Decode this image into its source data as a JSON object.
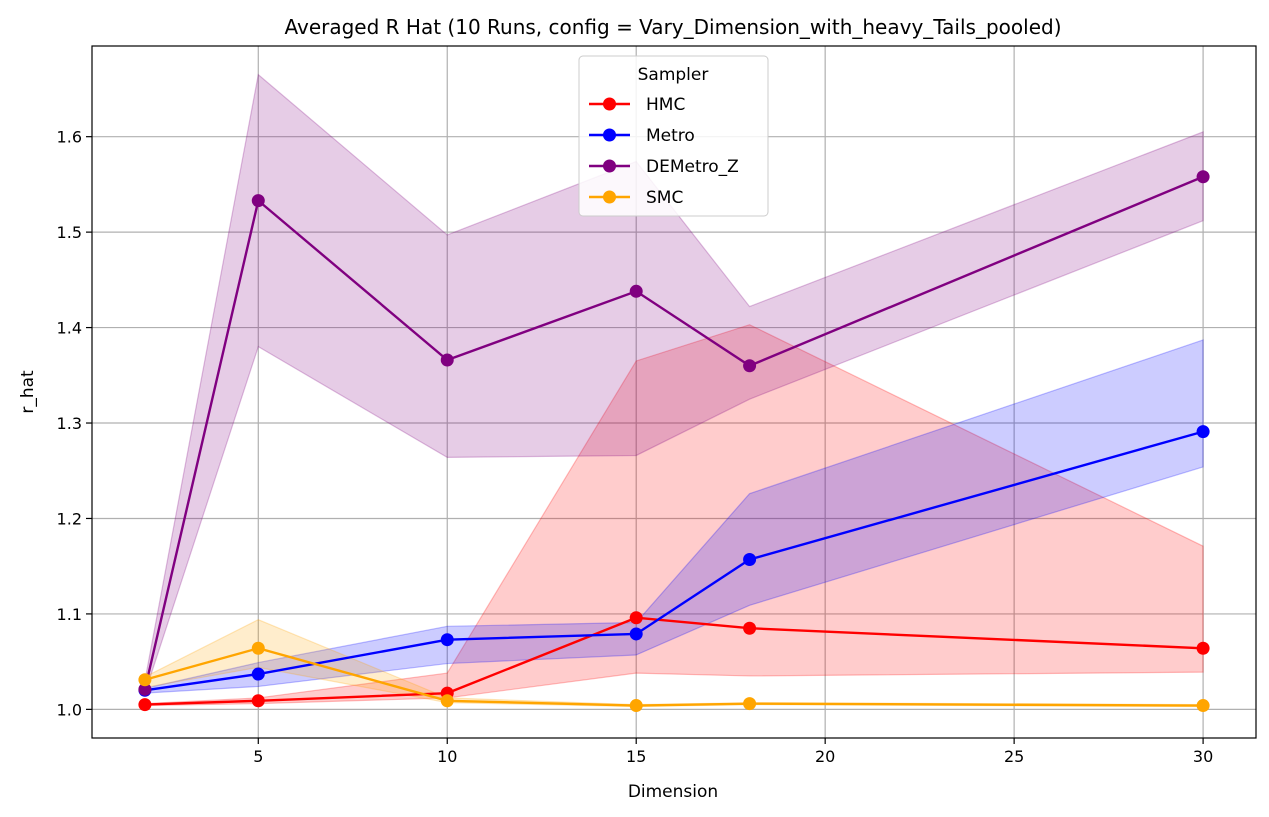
{
  "chart_data": {
    "type": "line",
    "title": "Averaged R Hat (10 Runs, config = Vary_Dimension_with_heavy_Tails_pooled)",
    "xlabel": "Dimension",
    "ylabel": "r_hat",
    "xlim": [
      0.6,
      31.4
    ],
    "ylim": [
      0.97,
      1.695
    ],
    "xticks": [
      5,
      10,
      15,
      20,
      25,
      30
    ],
    "yticks": [
      1.0,
      1.1,
      1.2,
      1.3,
      1.4,
      1.5,
      1.6
    ],
    "grid": true,
    "legend": {
      "title": "Sampler",
      "position": "top-center"
    },
    "x": [
      2,
      5,
      10,
      15,
      18,
      30
    ],
    "series": [
      {
        "name": "HMC",
        "color": "#ff0000",
        "values": [
          1.005,
          1.009,
          1.017,
          1.096,
          1.085,
          1.064
        ],
        "band_low": [
          1.004,
          1.006,
          1.012,
          1.038,
          1.035,
          1.039
        ],
        "band_high": [
          1.006,
          1.012,
          1.038,
          1.365,
          1.403,
          1.171
        ]
      },
      {
        "name": "Metro",
        "color": "#0000ff",
        "values": [
          1.02,
          1.037,
          1.073,
          1.079,
          1.157,
          1.291
        ],
        "band_low": [
          1.017,
          1.024,
          1.048,
          1.057,
          1.109,
          1.254
        ],
        "band_high": [
          1.022,
          1.049,
          1.087,
          1.091,
          1.226,
          1.387
        ]
      },
      {
        "name": "DEMetro_Z",
        "color": "#800080",
        "values": [
          1.021,
          1.533,
          1.366,
          1.438,
          1.36,
          1.558
        ],
        "band_low": [
          1.017,
          1.38,
          1.264,
          1.266,
          1.325,
          1.512
        ],
        "band_high": [
          1.03,
          1.665,
          1.497,
          1.574,
          1.422,
          1.605
        ]
      },
      {
        "name": "SMC",
        "color": "#ffa500",
        "values": [
          1.031,
          1.064,
          1.009,
          1.004,
          1.006,
          1.004
        ],
        "band_low": [
          1.023,
          1.044,
          1.007,
          1.003,
          1.005,
          1.003
        ],
        "band_high": [
          1.034,
          1.094,
          1.012,
          1.005,
          1.007,
          1.005
        ]
      }
    ]
  }
}
